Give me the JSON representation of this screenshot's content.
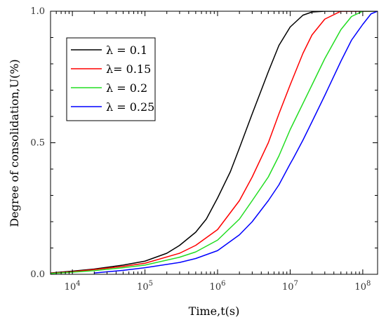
{
  "chart_data": {
    "type": "line",
    "title": "",
    "xlabel": "Time,t(s)",
    "ylabel": "Degree of consolidation,U(%)",
    "x_scale": "log",
    "xlim": [
      5000,
      160000000
    ],
    "ylim": [
      0,
      1
    ],
    "x_ticks": [
      {
        "value": 10000,
        "base": "10",
        "exp": "4"
      },
      {
        "value": 100000,
        "base": "10",
        "exp": "5"
      },
      {
        "value": 1000000,
        "base": "10",
        "exp": "6"
      },
      {
        "value": 10000000,
        "base": "10",
        "exp": "7"
      },
      {
        "value": 100000000,
        "base": "10",
        "exp": "8"
      }
    ],
    "y_ticks": [
      {
        "value": 0,
        "label": "0.0"
      },
      {
        "value": 0.5,
        "label": "0.5"
      },
      {
        "value": 1,
        "label": "1.0"
      }
    ],
    "grid": false,
    "legend_position": "top-left",
    "series": [
      {
        "name": "λ = 0.1",
        "color": "#000000",
        "points": [
          [
            5000,
            0.005
          ],
          [
            10000,
            0.012
          ],
          [
            20000,
            0.02
          ],
          [
            50000,
            0.035
          ],
          [
            100000,
            0.05
          ],
          [
            200000,
            0.08
          ],
          [
            300000,
            0.11
          ],
          [
            500000,
            0.16
          ],
          [
            700000,
            0.21
          ],
          [
            1000000,
            0.29
          ],
          [
            1500000,
            0.39
          ],
          [
            2000000,
            0.48
          ],
          [
            3000000,
            0.61
          ],
          [
            4000000,
            0.7
          ],
          [
            5000000,
            0.77
          ],
          [
            7000000,
            0.87
          ],
          [
            10000000,
            0.94
          ],
          [
            15000000,
            0.985
          ],
          [
            20000000,
            0.997
          ],
          [
            30000000,
            1.0
          ],
          [
            160000000,
            1.0
          ]
        ]
      },
      {
        "name": "λ= 0.15",
        "color": "#ff0000",
        "points": [
          [
            5000,
            0.004
          ],
          [
            10000,
            0.01
          ],
          [
            20000,
            0.018
          ],
          [
            50000,
            0.03
          ],
          [
            100000,
            0.042
          ],
          [
            300000,
            0.08
          ],
          [
            500000,
            0.11
          ],
          [
            1000000,
            0.17
          ],
          [
            2000000,
            0.28
          ],
          [
            3000000,
            0.37
          ],
          [
            5000000,
            0.5
          ],
          [
            7000000,
            0.61
          ],
          [
            10000000,
            0.72
          ],
          [
            15000000,
            0.84
          ],
          [
            20000000,
            0.91
          ],
          [
            30000000,
            0.97
          ],
          [
            50000000,
            1.0
          ],
          [
            160000000,
            1.0
          ]
        ]
      },
      {
        "name": "λ = 0.2",
        "color": "#22dd22",
        "points": [
          [
            5000,
            0.003
          ],
          [
            10000,
            0.008
          ],
          [
            20000,
            0.014
          ],
          [
            50000,
            0.025
          ],
          [
            100000,
            0.035
          ],
          [
            300000,
            0.065
          ],
          [
            500000,
            0.085
          ],
          [
            1000000,
            0.13
          ],
          [
            2000000,
            0.21
          ],
          [
            3000000,
            0.28
          ],
          [
            5000000,
            0.37
          ],
          [
            7000000,
            0.45
          ],
          [
            10000000,
            0.55
          ],
          [
            20000000,
            0.72
          ],
          [
            30000000,
            0.82
          ],
          [
            50000000,
            0.93
          ],
          [
            70000000,
            0.98
          ],
          [
            100000000,
            1.0
          ],
          [
            160000000,
            1.0
          ]
        ]
      },
      {
        "name": "λ = 0.25",
        "color": "#0000ff",
        "points": [
          [
            20000,
            0.005
          ],
          [
            50000,
            0.015
          ],
          [
            100000,
            0.025
          ],
          [
            300000,
            0.045
          ],
          [
            500000,
            0.06
          ],
          [
            1000000,
            0.09
          ],
          [
            2000000,
            0.15
          ],
          [
            3000000,
            0.2
          ],
          [
            5000000,
            0.28
          ],
          [
            7000000,
            0.34
          ],
          [
            10000000,
            0.42
          ],
          [
            11000000,
            0.44
          ],
          [
            15000000,
            0.51
          ],
          [
            20000000,
            0.58
          ],
          [
            30000000,
            0.68
          ],
          [
            50000000,
            0.81
          ],
          [
            70000000,
            0.89
          ],
          [
            100000000,
            0.95
          ],
          [
            130000000,
            0.99
          ],
          [
            160000000,
            1.0
          ]
        ]
      }
    ]
  }
}
